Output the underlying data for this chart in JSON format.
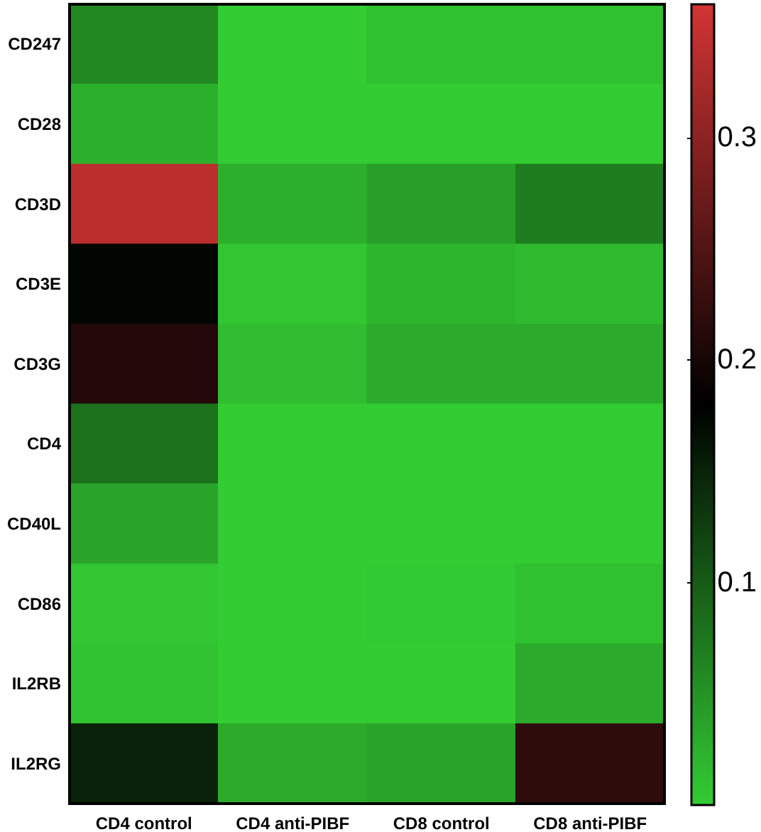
{
  "chart_data": {
    "type": "heatmap",
    "categories": [
      "CD4 control",
      "CD4 anti-PIBF",
      "CD8 control",
      "CD8 anti-PIBF"
    ],
    "y_categories": [
      "CD247",
      "CD28",
      "CD3D",
      "CD3E",
      "CD3G",
      "CD4",
      "CD40L",
      "CD86",
      "IL2RB",
      "IL2RG"
    ],
    "cells": [
      [
        0.06,
        0.0,
        0.01,
        0.01
      ],
      [
        0.025,
        0.0,
        0.0,
        0.0
      ],
      [
        0.34,
        0.025,
        0.04,
        0.07
      ],
      [
        0.175,
        0.005,
        0.02,
        0.015
      ],
      [
        0.21,
        0.012,
        0.03,
        0.03
      ],
      [
        0.08,
        0.0,
        0.0,
        0.0
      ],
      [
        0.035,
        0.0,
        0.0,
        0.0
      ],
      [
        0.005,
        0.0,
        0.002,
        0.01
      ],
      [
        0.008,
        0.0,
        0.0,
        0.03
      ],
      [
        0.15,
        0.03,
        0.035,
        0.22
      ]
    ],
    "clim": [
      0,
      0.36
    ],
    "cticks": [
      0.1,
      0.2,
      0.3
    ]
  }
}
